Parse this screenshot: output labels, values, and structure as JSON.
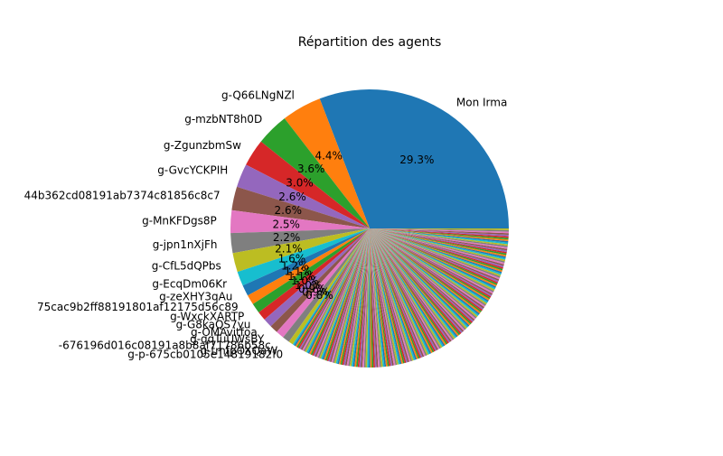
{
  "chart_data": {
    "type": "pie",
    "title": "Répartition des agents",
    "slices": [
      {
        "label": "Mon Irma",
        "value": 29.3,
        "pct_label": "29.3%",
        "color": "#1f77b4"
      },
      {
        "label": "g-Q66LNgNZl",
        "value": 4.4,
        "pct_label": "4.4%",
        "color": "#ff7f0e"
      },
      {
        "label": "g-mzbNT8h0D",
        "value": 3.6,
        "pct_label": "3.6%",
        "color": "#2ca02c"
      },
      {
        "label": "g-ZgunzbmSw",
        "value": 3.0,
        "pct_label": "3.0%",
        "color": "#d62728"
      },
      {
        "label": "g-GvcYCKPIH",
        "value": 2.6,
        "pct_label": "2.6%",
        "color": "#9467bd"
      },
      {
        "label": "44b362cd08191ab7374c81856c8c7",
        "value": 2.6,
        "pct_label": "2.6%",
        "color": "#8c564b"
      },
      {
        "label": "g-MnKFDgs8P",
        "value": 2.5,
        "pct_label": "2.5%",
        "color": "#e377c2"
      },
      {
        "label": "g-jpn1nXjFh",
        "value": 2.2,
        "pct_label": "2.2%",
        "color": "#7f7f7f"
      },
      {
        "label": "g-CfL5dQPbs",
        "value": 2.1,
        "pct_label": "2.1%",
        "color": "#bcbd22"
      },
      {
        "label": "g-EcqDm06Kr",
        "value": 1.6,
        "pct_label": "1.6%",
        "color": "#17becf"
      },
      {
        "label": "g-zeXHY3qAu",
        "value": 1.2,
        "pct_label": "1.2%",
        "color": "#1f77b4"
      },
      {
        "label": "75cac9b2ff88191801af12175d56c89",
        "value": 1.1,
        "pct_label": "1.1%",
        "color": "#ff7f0e"
      },
      {
        "label": "g-WxckXARTP",
        "value": 1.1,
        "pct_label": "1.1%",
        "color": "#2ca02c"
      },
      {
        "label": "g-G8kaQS7yu",
        "value": 1.0,
        "pct_label": "1.0%",
        "color": "#d62728"
      },
      {
        "label": "g-OMAvitfoa",
        "value": 1.0,
        "pct_label": "1.0%",
        "color": "#9467bd"
      },
      {
        "label": "g-qqTuUWsBY",
        "value": 0.9,
        "pct_label": "0.9%",
        "color": "#8c564b"
      },
      {
        "label": "-676196d016c08191a8b8af71786b58c",
        "value": 0.9,
        "pct_label": "0.9%",
        "color": "#e377c2"
      },
      {
        "label": "g-tmfpOXQaW",
        "value": 0.8,
        "pct_label": "0.8%",
        "color": "#7f7f7f"
      },
      {
        "label": "g-p-675cb0105e14819182f0",
        "value": 0.5,
        "pct_label": "",
        "color": "#bcbd22"
      }
    ],
    "other_slices": {
      "count": 190,
      "total_value": 32.6,
      "palette": [
        "#17becf",
        "#1f77b4",
        "#ff7f0e",
        "#2ca02c",
        "#d62728",
        "#9467bd",
        "#8c564b",
        "#e377c2",
        "#7f7f7f",
        "#bcbd22"
      ]
    },
    "start_angle": 0,
    "direction": "counterclockwise"
  }
}
